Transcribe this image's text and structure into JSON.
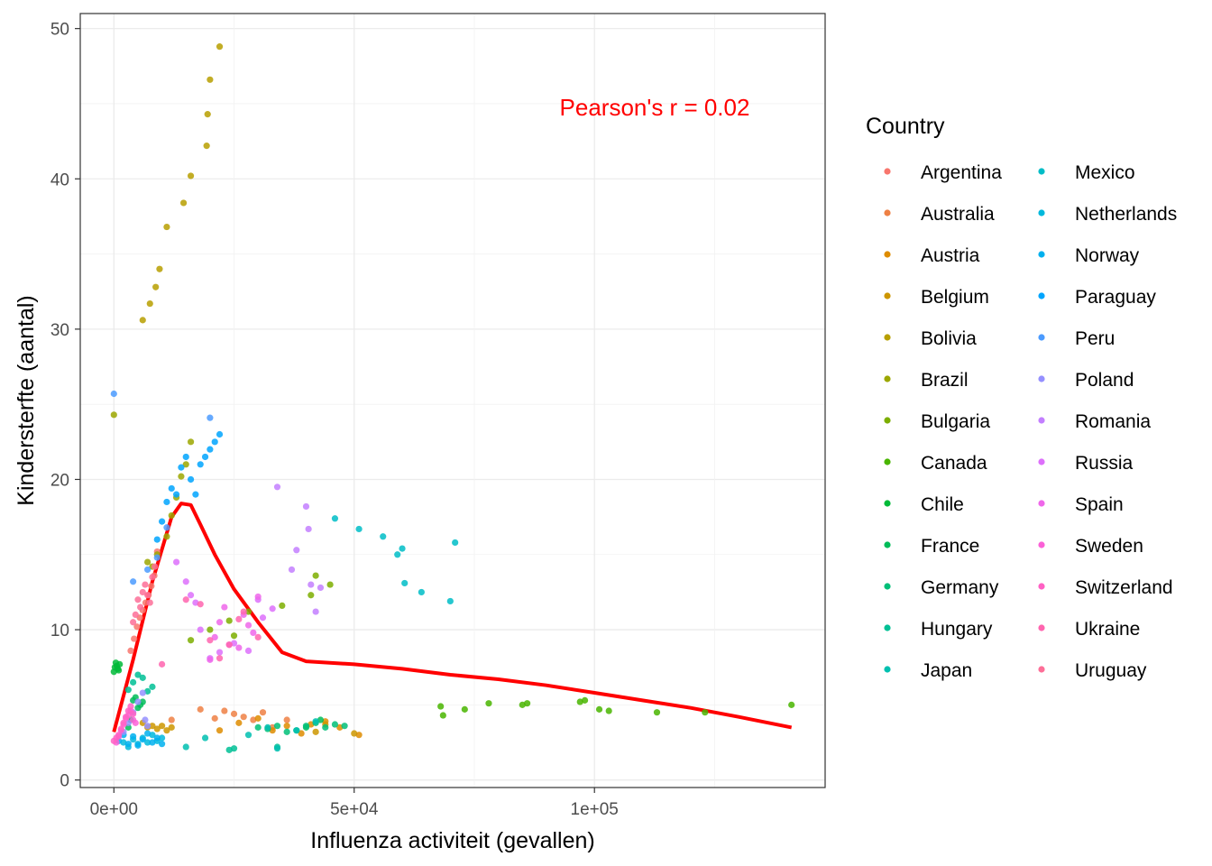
{
  "chart_data": {
    "type": "scatter",
    "title": "",
    "xlabel": "Influenza activiteit (gevallen)",
    "ylabel": "Kindersterfte (aantal)",
    "xlim": [
      -7000,
      148000
    ],
    "ylim": [
      -0.5,
      51
    ],
    "x_ticks": [
      0,
      50000,
      100000
    ],
    "x_tick_labels": [
      "0e+00",
      "5e+04",
      "1e+05"
    ],
    "y_ticks": [
      0,
      10,
      20,
      30,
      40,
      50
    ],
    "y_tick_labels": [
      "0",
      "10",
      "20",
      "30",
      "40",
      "50"
    ],
    "grid": true,
    "legend_position": "right",
    "legend_title": "Country",
    "annotation": {
      "text": "Pearson's r =  0.02",
      "color": "#ff0000"
    },
    "trend_line": {
      "color": "#ff0000",
      "x": [
        0,
        4000,
        8000,
        12000,
        14000,
        16000,
        18000,
        21000,
        25000,
        30000,
        35000,
        40000,
        50000,
        60000,
        70000,
        80000,
        90000,
        100000,
        110000,
        120000,
        130000,
        141000
      ],
      "y": [
        3.2,
        8,
        13.2,
        17.5,
        18.4,
        18.3,
        17,
        15,
        12.7,
        10.5,
        8.5,
        7.9,
        7.7,
        7.4,
        7.0,
        6.7,
        6.3,
        5.8,
        5.3,
        4.8,
        4.2,
        3.5
      ]
    },
    "series": [
      {
        "name": "Argentina",
        "color": "#F8766D",
        "x": [
          3500,
          4200,
          4800,
          5400,
          6000,
          6600,
          7200,
          7800,
          8400,
          9000
        ],
        "y": [
          8.6,
          9.4,
          10.2,
          10.8,
          11.3,
          11.8,
          12.3,
          12.9,
          13.6,
          15.2
        ]
      },
      {
        "name": "Australia",
        "color": "#EE8044",
        "x": [
          12000,
          18000,
          21000,
          23000,
          25000,
          27000,
          29000,
          31000,
          33000,
          36000
        ],
        "y": [
          4.0,
          4.7,
          4.1,
          4.6,
          4.4,
          4.2,
          4.0,
          4.5,
          3.5,
          4.0
        ]
      },
      {
        "name": "Austria",
        "color": "#DE8C00",
        "x": [
          22000,
          26000,
          30000,
          33000,
          36000,
          39000,
          41000,
          44000,
          47000,
          51000
        ],
        "y": [
          3.3,
          3.8,
          4.1,
          3.3,
          3.6,
          3.1,
          3.7,
          3.9,
          3.5,
          3.0
        ]
      },
      {
        "name": "Belgium",
        "color": "#CD9600",
        "x": [
          6000,
          7000,
          8000,
          9000,
          10000,
          11000,
          12000,
          42000,
          44000,
          50000
        ],
        "y": [
          3.8,
          3.5,
          3.6,
          3.4,
          3.6,
          3.3,
          3.5,
          3.2,
          3.7,
          3.1
        ]
      },
      {
        "name": "Bolivia",
        "color": "#B79F00",
        "x": [
          6000,
          7500,
          8700,
          9500,
          11000,
          14500,
          16000,
          19300,
          19500,
          20000,
          22000
        ],
        "y": [
          30.6,
          31.7,
          32.8,
          34.0,
          36.8,
          38.4,
          40.2,
          42.2,
          44.3,
          46.6,
          48.8
        ]
      },
      {
        "name": "Brazil",
        "color": "#9CA700",
        "x": [
          0,
          7000,
          8000,
          9000,
          11000,
          12000,
          13000,
          14000,
          15000,
          16000
        ],
        "y": [
          24.3,
          14.5,
          14.2,
          15.0,
          16.2,
          17.6,
          18.8,
          20.2,
          21.0,
          22.5
        ]
      },
      {
        "name": "Bulgaria",
        "color": "#7CAE00",
        "x": [
          16000,
          20000,
          24000,
          25000,
          28000,
          35000,
          41000,
          42000,
          45000
        ],
        "y": [
          9.3,
          10.0,
          10.6,
          9.6,
          11.2,
          11.6,
          12.3,
          13.6,
          13.0
        ]
      },
      {
        "name": "Canada",
        "color": "#49B500",
        "x": [
          68000,
          68500,
          73000,
          78000,
          85000,
          86000,
          97000,
          98000,
          101000,
          103000,
          113000,
          123000,
          141000
        ],
        "y": [
          4.9,
          4.3,
          4.7,
          5.1,
          5.0,
          5.1,
          5.2,
          5.3,
          4.7,
          4.6,
          4.5,
          4.5,
          5.0
        ]
      },
      {
        "name": "Chile",
        "color": "#00BA38",
        "x": [
          0,
          200,
          400,
          600,
          800,
          1000,
          1200
        ],
        "y": [
          7.2,
          7.5,
          7.8,
          7.6,
          7.4,
          7.3,
          7.7
        ]
      },
      {
        "name": "France",
        "color": "#00BC59",
        "x": [
          3000,
          3500,
          4000,
          4500,
          5000,
          5500,
          6000,
          40000,
          43000
        ],
        "y": [
          3.5,
          4.0,
          5.3,
          5.5,
          4.8,
          5.0,
          5.2,
          3.5,
          4.0
        ]
      },
      {
        "name": "Germany",
        "color": "#00BF78",
        "x": [
          30000,
          32000,
          34000,
          36000,
          38000,
          40000,
          42000,
          44000,
          46000,
          48000
        ],
        "y": [
          3.5,
          3.4,
          3.6,
          3.2,
          3.3,
          3.6,
          3.8,
          3.5,
          3.7,
          3.6
        ]
      },
      {
        "name": "Hungary",
        "color": "#00C095",
        "x": [
          3000,
          4000,
          5000,
          6000,
          7000,
          8000,
          24000,
          25000,
          34000
        ],
        "y": [
          6.0,
          6.5,
          7.0,
          6.8,
          5.9,
          6.2,
          2.0,
          2.1,
          2.2
        ]
      },
      {
        "name": "Japan",
        "color": "#00C0B0",
        "x": [
          15000,
          19000,
          28000,
          32000,
          34000,
          38000,
          42000
        ],
        "y": [
          2.2,
          2.8,
          3.0,
          3.5,
          2.1,
          3.3,
          3.9
        ]
      },
      {
        "name": "Mexico",
        "color": "#00BDC7",
        "x": [
          46000,
          51000,
          56000,
          59000,
          60000,
          60500,
          64000,
          70000,
          71000
        ],
        "y": [
          17.4,
          16.7,
          16.2,
          15.0,
          15.4,
          13.1,
          12.5,
          11.9,
          15.8
        ]
      },
      {
        "name": "Netherlands",
        "color": "#00B8DC",
        "x": [
          2000,
          3000,
          4000,
          5000,
          6000,
          7000,
          8000,
          9000,
          10000
        ],
        "y": [
          2.5,
          2.2,
          2.7,
          2.4,
          2.8,
          2.5,
          3.0,
          2.6,
          2.8
        ]
      },
      {
        "name": "Norway",
        "color": "#00B0EE",
        "x": [
          1000,
          2000,
          3000,
          4000,
          5000,
          6000,
          7000,
          8000,
          9000,
          10000
        ],
        "y": [
          2.6,
          3.0,
          2.4,
          2.9,
          2.3,
          2.7,
          3.1,
          2.5,
          2.8,
          2.4
        ]
      },
      {
        "name": "Paraguay",
        "color": "#00A5FE",
        "x": [
          9000,
          10000,
          11000,
          12000,
          13000,
          14000,
          15000,
          16000,
          17000,
          18000,
          19000,
          20000,
          21000,
          22000
        ],
        "y": [
          16.0,
          17.2,
          18.5,
          19.4,
          19.0,
          20.8,
          21.5,
          20.0,
          19.0,
          21.0,
          21.5,
          22.0,
          22.5,
          23.0
        ]
      },
      {
        "name": "Peru",
        "color": "#4B9BFF",
        "x": [
          0,
          4000,
          7000,
          9000,
          11000,
          20000
        ],
        "y": [
          25.7,
          13.2,
          14.0,
          14.8,
          16.8,
          24.1
        ]
      },
      {
        "name": "Poland",
        "color": "#9590FF",
        "x": [
          2000,
          3000,
          4000,
          5000,
          6000,
          6500,
          7000
        ],
        "y": [
          3.2,
          3.8,
          4.5,
          5.2,
          5.8,
          4.0,
          3.6
        ]
      },
      {
        "name": "Romania",
        "color": "#C37FFF",
        "x": [
          34000,
          37000,
          38000,
          40000,
          40500,
          41000,
          42000,
          43000
        ],
        "y": [
          19.5,
          14.0,
          15.3,
          18.2,
          16.7,
          13.0,
          11.2,
          12.8
        ]
      },
      {
        "name": "Russia",
        "color": "#DD70FB",
        "x": [
          13000,
          15000,
          16000,
          17000,
          18000,
          20000,
          22000,
          25000,
          28000,
          30000,
          31000,
          33000
        ],
        "y": [
          14.5,
          13.2,
          12.3,
          11.8,
          10.0,
          8.1,
          8.5,
          9.1,
          8.6,
          12.0,
          10.8,
          11.4
        ]
      },
      {
        "name": "Spain",
        "color": "#EF67EA",
        "x": [
          20000,
          21000,
          22000,
          23000,
          24000,
          26000,
          27000,
          28000,
          29000,
          30000
        ],
        "y": [
          8.0,
          9.5,
          10.5,
          11.5,
          9.0,
          8.8,
          11.0,
          10.3,
          9.8,
          12.2
        ]
      },
      {
        "name": "Sweden",
        "color": "#FB61D7",
        "x": [
          500,
          1000,
          1500,
          2000,
          2500,
          3000,
          3500,
          4000,
          4500
        ],
        "y": [
          2.5,
          2.9,
          3.3,
          3.7,
          4.1,
          4.3,
          4.6,
          4.0,
          3.8
        ]
      },
      {
        "name": "Switzerland",
        "color": "#FF61C4",
        "x": [
          0,
          500,
          1000,
          1500,
          2000,
          2500,
          3000,
          3500,
          4000
        ],
        "y": [
          2.6,
          2.8,
          3.0,
          3.4,
          3.8,
          4.2,
          4.6,
          4.9,
          4.4
        ]
      },
      {
        "name": "Ukraine",
        "color": "#FF65AF",
        "x": [
          10000,
          15000,
          18000,
          20000,
          22000,
          24000,
          26000,
          27000,
          30000
        ],
        "y": [
          7.7,
          12.0,
          11.7,
          9.3,
          8.1,
          9.0,
          10.7,
          11.2,
          9.5
        ]
      },
      {
        "name": "Uruguay",
        "color": "#FD6F98",
        "x": [
          4000,
          4500,
          5000,
          5500,
          6000,
          6500,
          7000,
          7500,
          8000,
          8500
        ],
        "y": [
          10.5,
          11.0,
          12.0,
          11.5,
          12.5,
          13.0,
          12.3,
          11.8,
          13.5,
          14.2
        ]
      }
    ]
  }
}
